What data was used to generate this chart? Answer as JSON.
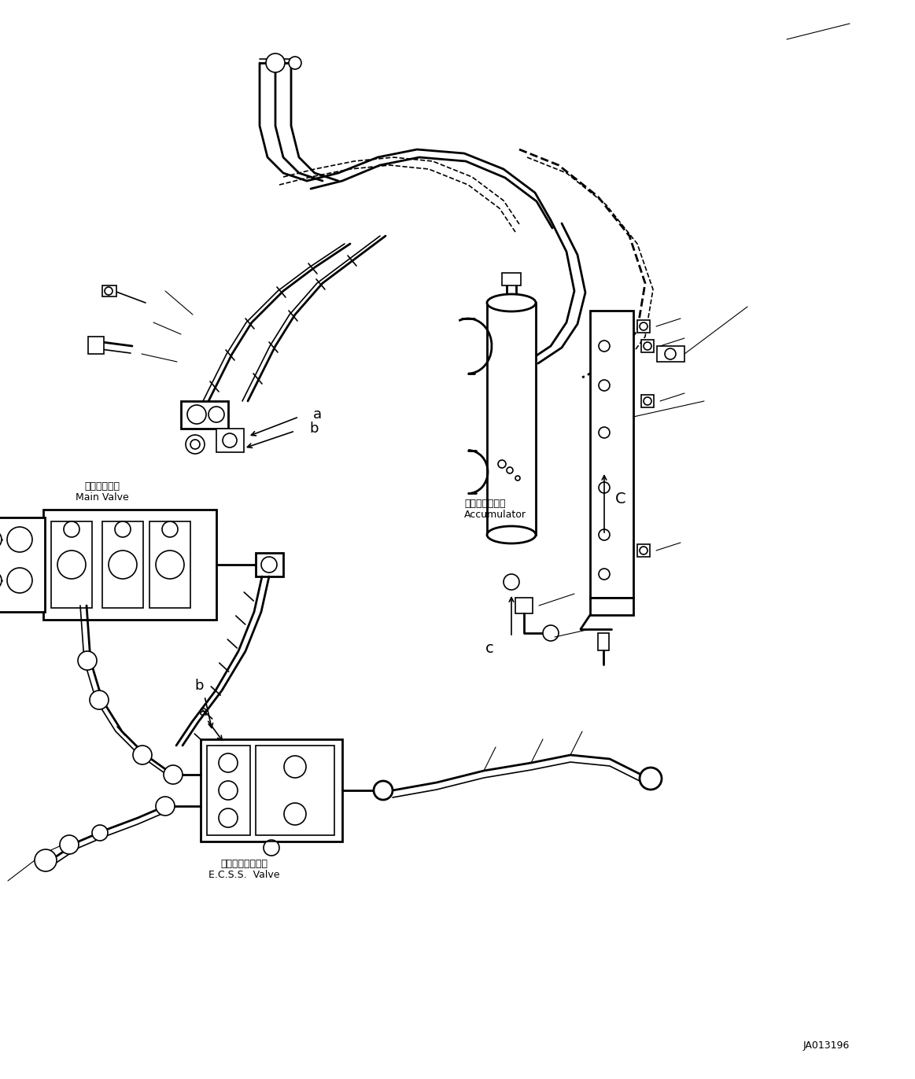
{
  "bg_color": "#ffffff",
  "line_color": "#000000",
  "figure_width": 11.63,
  "figure_height": 13.72,
  "dpi": 100,
  "part_id": "JA013196",
  "labels": {
    "main_valve_jp": "メインバルブ",
    "main_valve_en": "Main Valve",
    "accumulator_jp": "アキュムレータ",
    "accumulator_en": "Accumulator",
    "ecss_valve_jp": "走行ダンババルブ",
    "ecss_valve_en": "E.C.S.S.  Valve",
    "label_a": "a",
    "label_b": "b",
    "label_c": "c",
    "label_C": "C"
  },
  "font_sizes": {
    "label": 9,
    "callout": 13,
    "part_id": 9
  }
}
